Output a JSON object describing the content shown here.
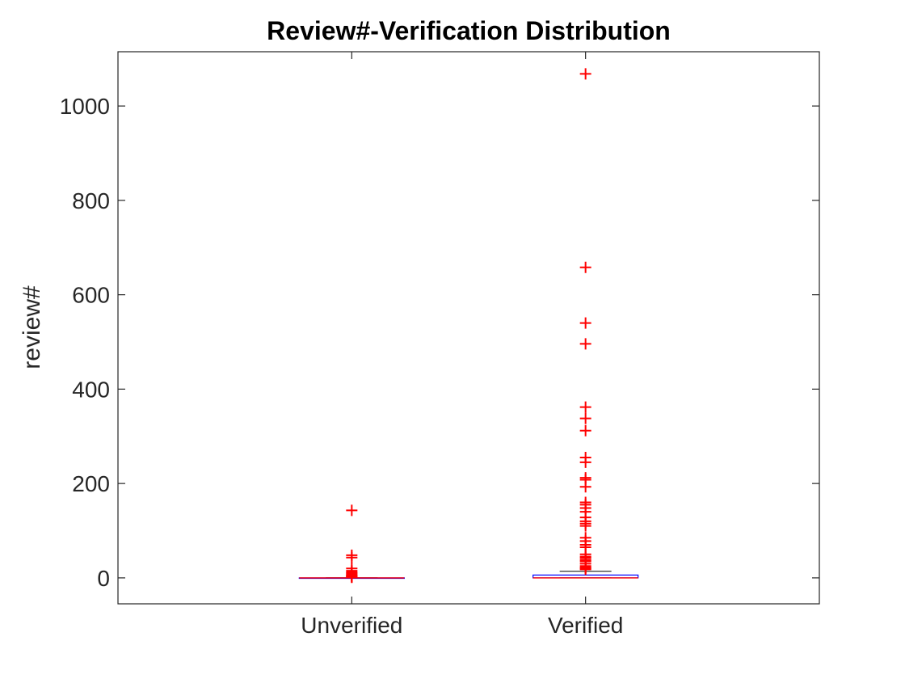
{
  "chart_data": {
    "type": "boxplot",
    "title": "Review#-Verification Distribution",
    "xlabel": "",
    "ylabel": "review#",
    "categories": [
      "Unverified",
      "Verified"
    ],
    "ylim": [
      -55,
      1115
    ],
    "yticks": [
      0,
      200,
      400,
      600,
      800,
      1000
    ],
    "grid": false,
    "legend": "none",
    "boxes": [
      {
        "category": "Unverified",
        "q1": 0,
        "median": 0,
        "q3": 0,
        "whisker_low": 0,
        "whisker_high": 0,
        "box_color": "#0000ff",
        "median_color": "#ff0000",
        "outliers": [
          143,
          48,
          43,
          20,
          15,
          12,
          10,
          8,
          6,
          5,
          4,
          3,
          2,
          1
        ]
      },
      {
        "category": "Verified",
        "q1": 0,
        "median": 0,
        "q3": 6,
        "whisker_low": 0,
        "whisker_high": 14,
        "box_color": "#0000ff",
        "median_color": "#ff0000",
        "outliers": [
          1068,
          658,
          540,
          496,
          362,
          338,
          312,
          255,
          245,
          212,
          208,
          193,
          160,
          155,
          148,
          140,
          128,
          120,
          115,
          110,
          85,
          78,
          70,
          65,
          50,
          45,
          42,
          38,
          35,
          30,
          25,
          22,
          20,
          18
        ]
      }
    ],
    "outlier_color": "#ff0000",
    "whisker_color": "#000000"
  }
}
